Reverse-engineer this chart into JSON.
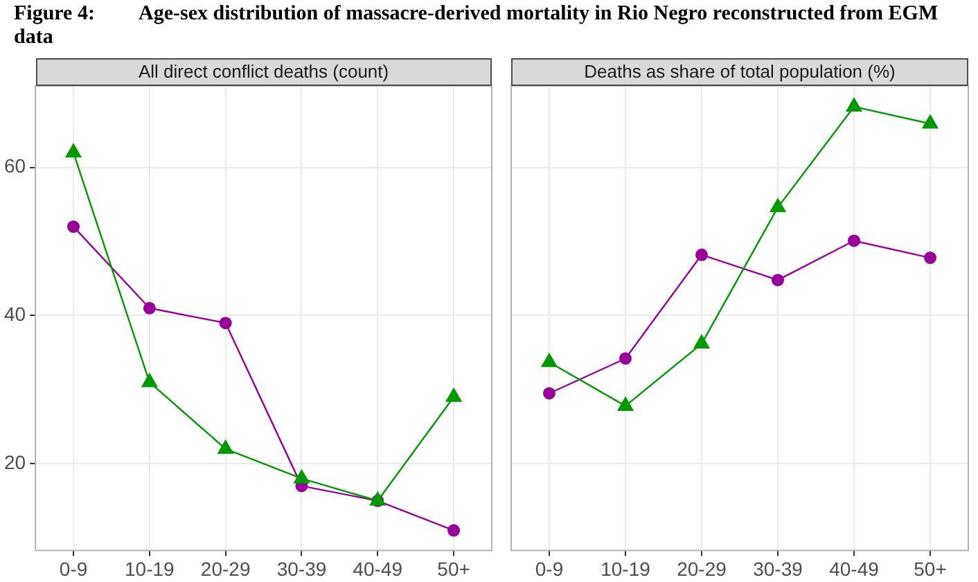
{
  "chart_data": [
    {
      "type": "line",
      "title": "All direct conflict deaths (count)",
      "annotations": [
        "Figure 4:\tAge-sex distribution of massacre-derived mortality in Rio Negro reconstructed from EGM data"
      ],
      "categories": [
        "0-9",
        "10-19",
        "20-29",
        "30-39",
        "40-49",
        "50+"
      ],
      "series": [
        {
          "color": "#990099",
          "marker": "circle",
          "values": [
            52,
            41,
            39,
            17,
            15,
            11
          ]
        },
        {
          "color": "#009900",
          "marker": "triangle",
          "values": [
            62,
            31,
            22,
            18,
            15,
            29
          ]
        }
      ],
      "ylim": [
        8.3,
        71
      ],
      "yticks": [
        20,
        40,
        60
      ],
      "grid": true,
      "legend": false,
      "line_style": "solid"
    },
    {
      "type": "line",
      "title": "Deaths as share of total population (%)",
      "categories": [
        "0-9",
        "10-19",
        "20-29",
        "30-39",
        "40-49",
        "50+"
      ],
      "series": [
        {
          "color": "#990099",
          "marker": "circle",
          "values": [
            29.5,
            34.2,
            48.2,
            44.8,
            50.1,
            47.8
          ]
        },
        {
          "color": "#009900",
          "marker": "triangle",
          "values": [
            33.7,
            27.8,
            36.2,
            54.6,
            68.2,
            65.9
          ]
        }
      ],
      "ylim": [
        8.3,
        71
      ],
      "yticks": [
        20,
        40,
        60
      ],
      "grid": true,
      "legend": false,
      "line_style": "solid",
      "tick_labels": "x"
    }
  ]
}
